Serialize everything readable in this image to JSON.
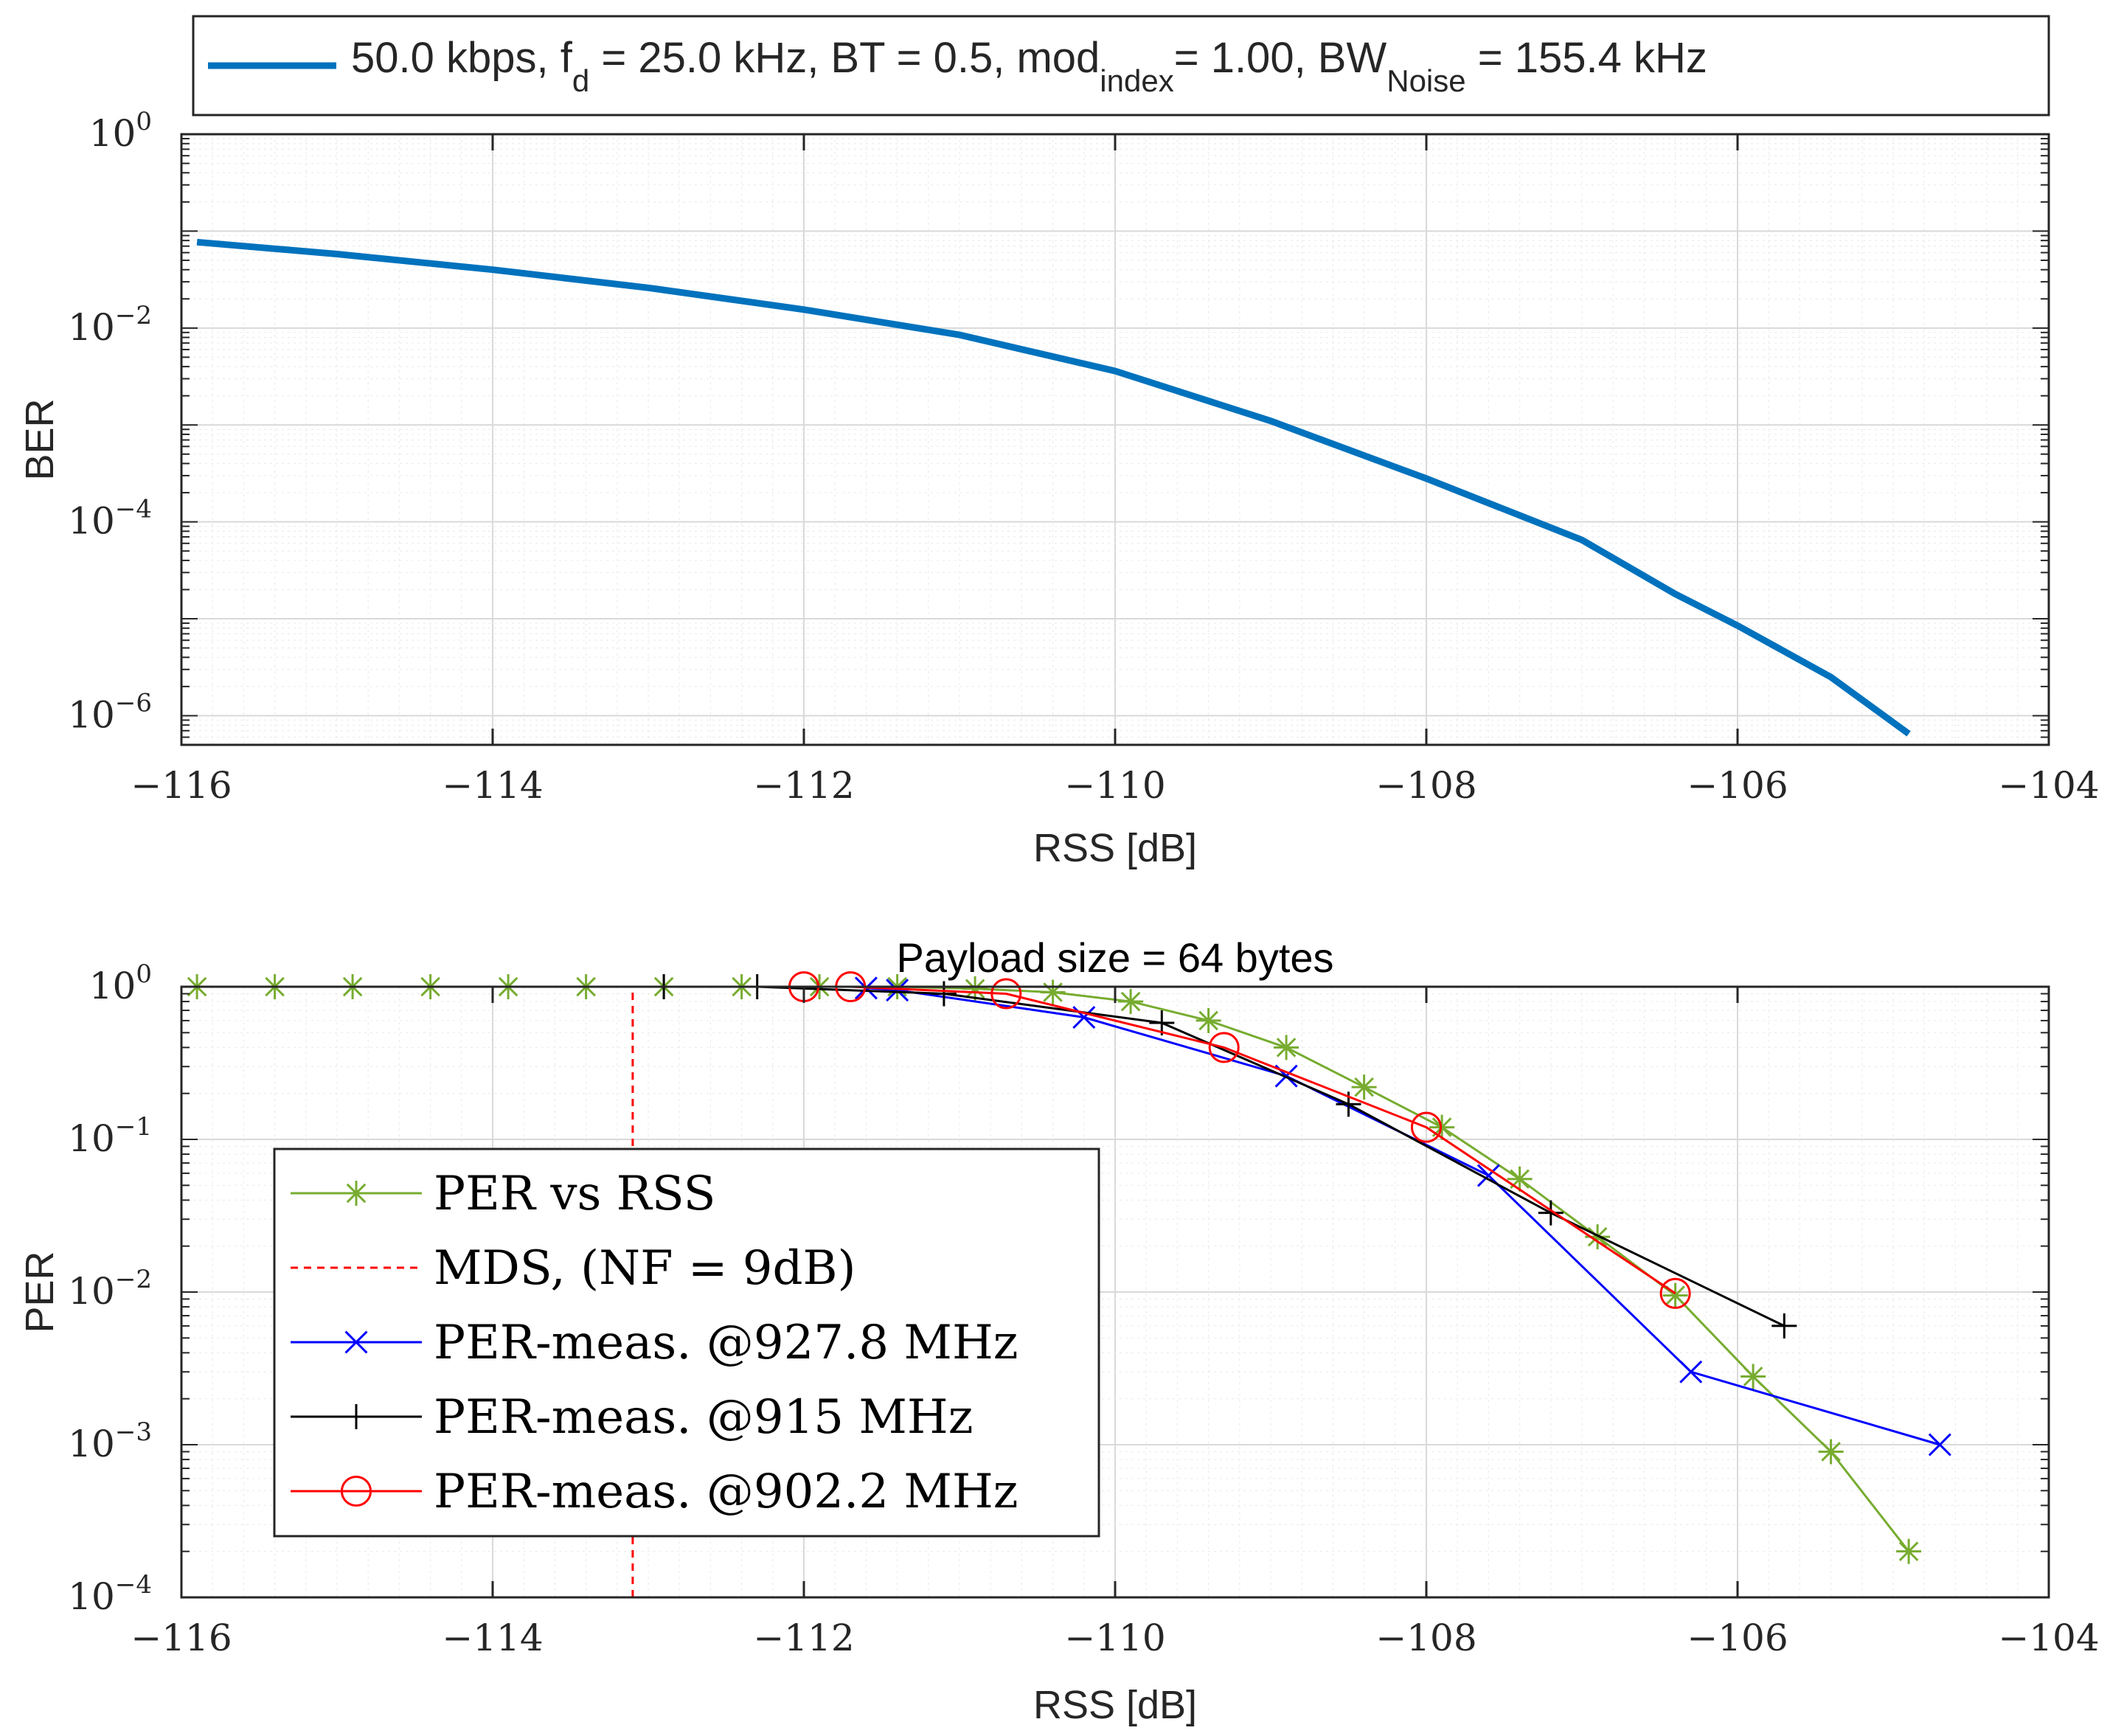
{
  "chart_data": [
    {
      "type": "line",
      "title": "",
      "xlabel": "RSS [dB]",
      "ylabel": "BER",
      "xlim": [
        -116,
        -104
      ],
      "ylim": [
        5e-07,
        1
      ],
      "yscale": "log",
      "grid": true,
      "minor_grid": true,
      "legend_position": "top",
      "x_ticks": [
        -116,
        -114,
        -112,
        -110,
        -108,
        -106,
        -104
      ],
      "x_tick_labels": [
        "−116",
        "−114",
        "−112",
        "−110",
        "−108",
        "−106",
        "−104"
      ],
      "y_ticks": [
        {
          "value": 1,
          "base": "10",
          "exp": "0"
        },
        {
          "value": 0.01,
          "base": "10",
          "exp": "−2"
        },
        {
          "value": 0.0001,
          "base": "10",
          "exp": "−4"
        },
        {
          "value": 1e-06,
          "base": "10",
          "exp": "−6"
        }
      ],
      "legend": [
        {
          "parts": [
            {
              "text": "50.0 kbps, f"
            },
            {
              "text": "d",
              "sub": true
            },
            {
              "text": " = 25.0 kHz, BT = 0.5, mod"
            },
            {
              "text": "index",
              "sub": true
            },
            {
              "text": "= 1.00, BW"
            },
            {
              "text": "Noise",
              "sub": true
            },
            {
              "text": " = 155.4 kHz"
            }
          ]
        }
      ],
      "series": [
        {
          "name": "50.0 kbps, fd = 25.0 kHz, BT = 0.5, modindex = 1.00, BWNoise = 155.4 kHz",
          "color": "#0072BD",
          "marker": "none",
          "x": [
            -115.9,
            -115.0,
            -114.0,
            -113.0,
            -112.0,
            -111.0,
            -110.0,
            -109.0,
            -108.0,
            -107.0,
            -106.4,
            -106.0,
            -105.4,
            -104.9
          ],
          "y": [
            0.077,
            0.058,
            0.04,
            0.026,
            0.0155,
            0.0085,
            0.0036,
            0.0011,
            0.00028,
            6.5e-05,
            1.8e-05,
            8.5e-06,
            2.5e-06,
            6.5e-07
          ]
        }
      ]
    },
    {
      "type": "line",
      "title": "Payload size = 64 bytes",
      "xlabel": "RSS [dB]",
      "ylabel": "PER",
      "xlim": [
        -116,
        -104
      ],
      "ylim": [
        0.0001,
        1
      ],
      "yscale": "log",
      "grid": true,
      "minor_grid": true,
      "legend_position": "bottom-left",
      "x_ticks": [
        -116,
        -114,
        -112,
        -110,
        -108,
        -106,
        -104
      ],
      "x_tick_labels": [
        "−116",
        "−114",
        "−112",
        "−110",
        "−108",
        "−106",
        "−104"
      ],
      "y_ticks": [
        {
          "value": 1,
          "base": "10",
          "exp": "0"
        },
        {
          "value": 0.1,
          "base": "10",
          "exp": "−1"
        },
        {
          "value": 0.01,
          "base": "10",
          "exp": "−2"
        },
        {
          "value": 0.001,
          "base": "10",
          "exp": "−3"
        },
        {
          "value": 0.0001,
          "base": "10",
          "exp": "−4"
        }
      ],
      "series": [
        {
          "name": "PER vs RSS",
          "color": "#77AC30",
          "marker": "star",
          "x": [
            -115.9,
            -115.4,
            -114.9,
            -114.4,
            -113.9,
            -113.4,
            -112.9,
            -112.4,
            -111.9,
            -111.4,
            -110.9,
            -110.4,
            -109.9,
            -109.4,
            -108.9,
            -108.4,
            -107.9,
            -107.4,
            -106.9,
            -106.4,
            -105.9,
            -105.4,
            -104.9
          ],
          "y": [
            1,
            1,
            1,
            1,
            1,
            1,
            1,
            1,
            1,
            1,
            0.97,
            0.92,
            0.8,
            0.6,
            0.4,
            0.22,
            0.12,
            0.055,
            0.023,
            0.0095,
            0.0028,
            0.0009,
            0.0002
          ]
        },
        {
          "name": "MDS, (NF = 9dB)",
          "color": "#FF0000",
          "marker": "none",
          "dashed": true,
          "x": [
            -113.1,
            -113.1
          ],
          "y": [
            0.0001,
            1
          ]
        },
        {
          "name": "PER-meas. @927.8 MHz",
          "color": "#0000FF",
          "marker": "x",
          "x": [
            -111.6,
            -111.4,
            -110.2,
            -108.9,
            -107.6,
            -106.3,
            -104.7
          ],
          "y": [
            0.98,
            0.95,
            0.63,
            0.26,
            0.058,
            0.003,
            0.001
          ]
        },
        {
          "name": "PER-meas. @915 MHz",
          "color": "#000000",
          "marker": "plus",
          "x": [
            -112.9,
            -112.3,
            -111.1,
            -109.7,
            -108.5,
            -107.2,
            -105.7
          ],
          "y": [
            1,
            1,
            0.9,
            0.58,
            0.17,
            0.033,
            0.006
          ]
        },
        {
          "name": "PER-meas. @902.2 MHz",
          "color": "#FF0000",
          "marker": "circle",
          "x": [
            -112.0,
            -111.7,
            -110.7,
            -109.3,
            -108.0,
            -106.4
          ],
          "y": [
            1,
            1,
            0.9,
            0.4,
            0.12,
            0.0098
          ]
        }
      ]
    }
  ]
}
